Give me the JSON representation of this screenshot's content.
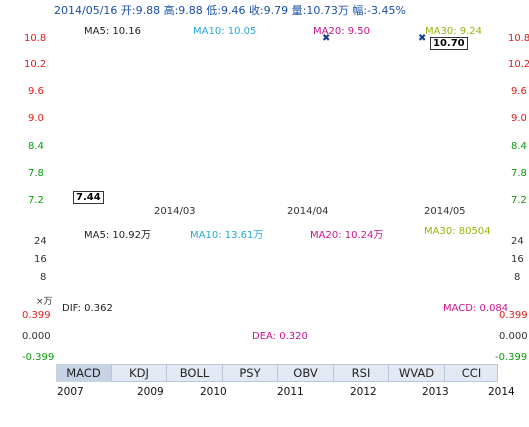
{
  "header": {
    "summary": "2014/05/16 开:9.88 高:9.88 低:9.46 收:9.79 量:10.73万 幅:-3.45%",
    "color": "#1a4fa8"
  },
  "price_panel": {
    "ma_legend": [
      {
        "label": "MA5: 10.16",
        "color": "#222222"
      },
      {
        "label": "MA10: 10.05",
        "color": "#27a7d8"
      },
      {
        "label": "MA20: 9.50",
        "color": "#c8148c"
      },
      {
        "label": "MA30: 9.24",
        "color": "#9bb20b"
      }
    ],
    "y_ticks": [
      "10.8",
      "10.2",
      "9.6",
      "9.0",
      "8.4",
      "7.8",
      "7.2"
    ],
    "y_range": [
      7.2,
      10.8
    ],
    "x_ticks": [
      "2014/03",
      "2014/04",
      "2014/05"
    ],
    "max_label": "10.70",
    "min_label": "7.44"
  },
  "volume_panel": {
    "ma_legend": [
      {
        "label": "MA5: 10.92万",
        "color": "#222222"
      },
      {
        "label": "MA10: 13.61万",
        "color": "#27a7d8"
      },
      {
        "label": "MA20: 10.24万",
        "color": "#c8148c"
      },
      {
        "label": "MA30: 80504",
        "color": "#9bb20b"
      }
    ],
    "y_ticks": [
      "24",
      "16",
      "8"
    ],
    "unit": "×万"
  },
  "macd_panel": {
    "dif": "DIF: 0.362",
    "dea": "DEA: 0.320",
    "macd": "MACD: 0.084",
    "y_ticks": [
      "0.399",
      "0.000",
      "-0.399"
    ]
  },
  "tabs": [
    "MACD",
    "KDJ",
    "BOLL",
    "PSY",
    "OBV",
    "RSI",
    "WVAD",
    "CCI"
  ],
  "active_tab": "MACD",
  "timeline": {
    "years": [
      "2007",
      "2009",
      "2010",
      "2011",
      "2012",
      "2013",
      "2014"
    ]
  },
  "colors": {
    "up": "#ee1111",
    "down": "#0a9a0a",
    "grid": "#d8d8d8",
    "axis": "#777777"
  }
}
